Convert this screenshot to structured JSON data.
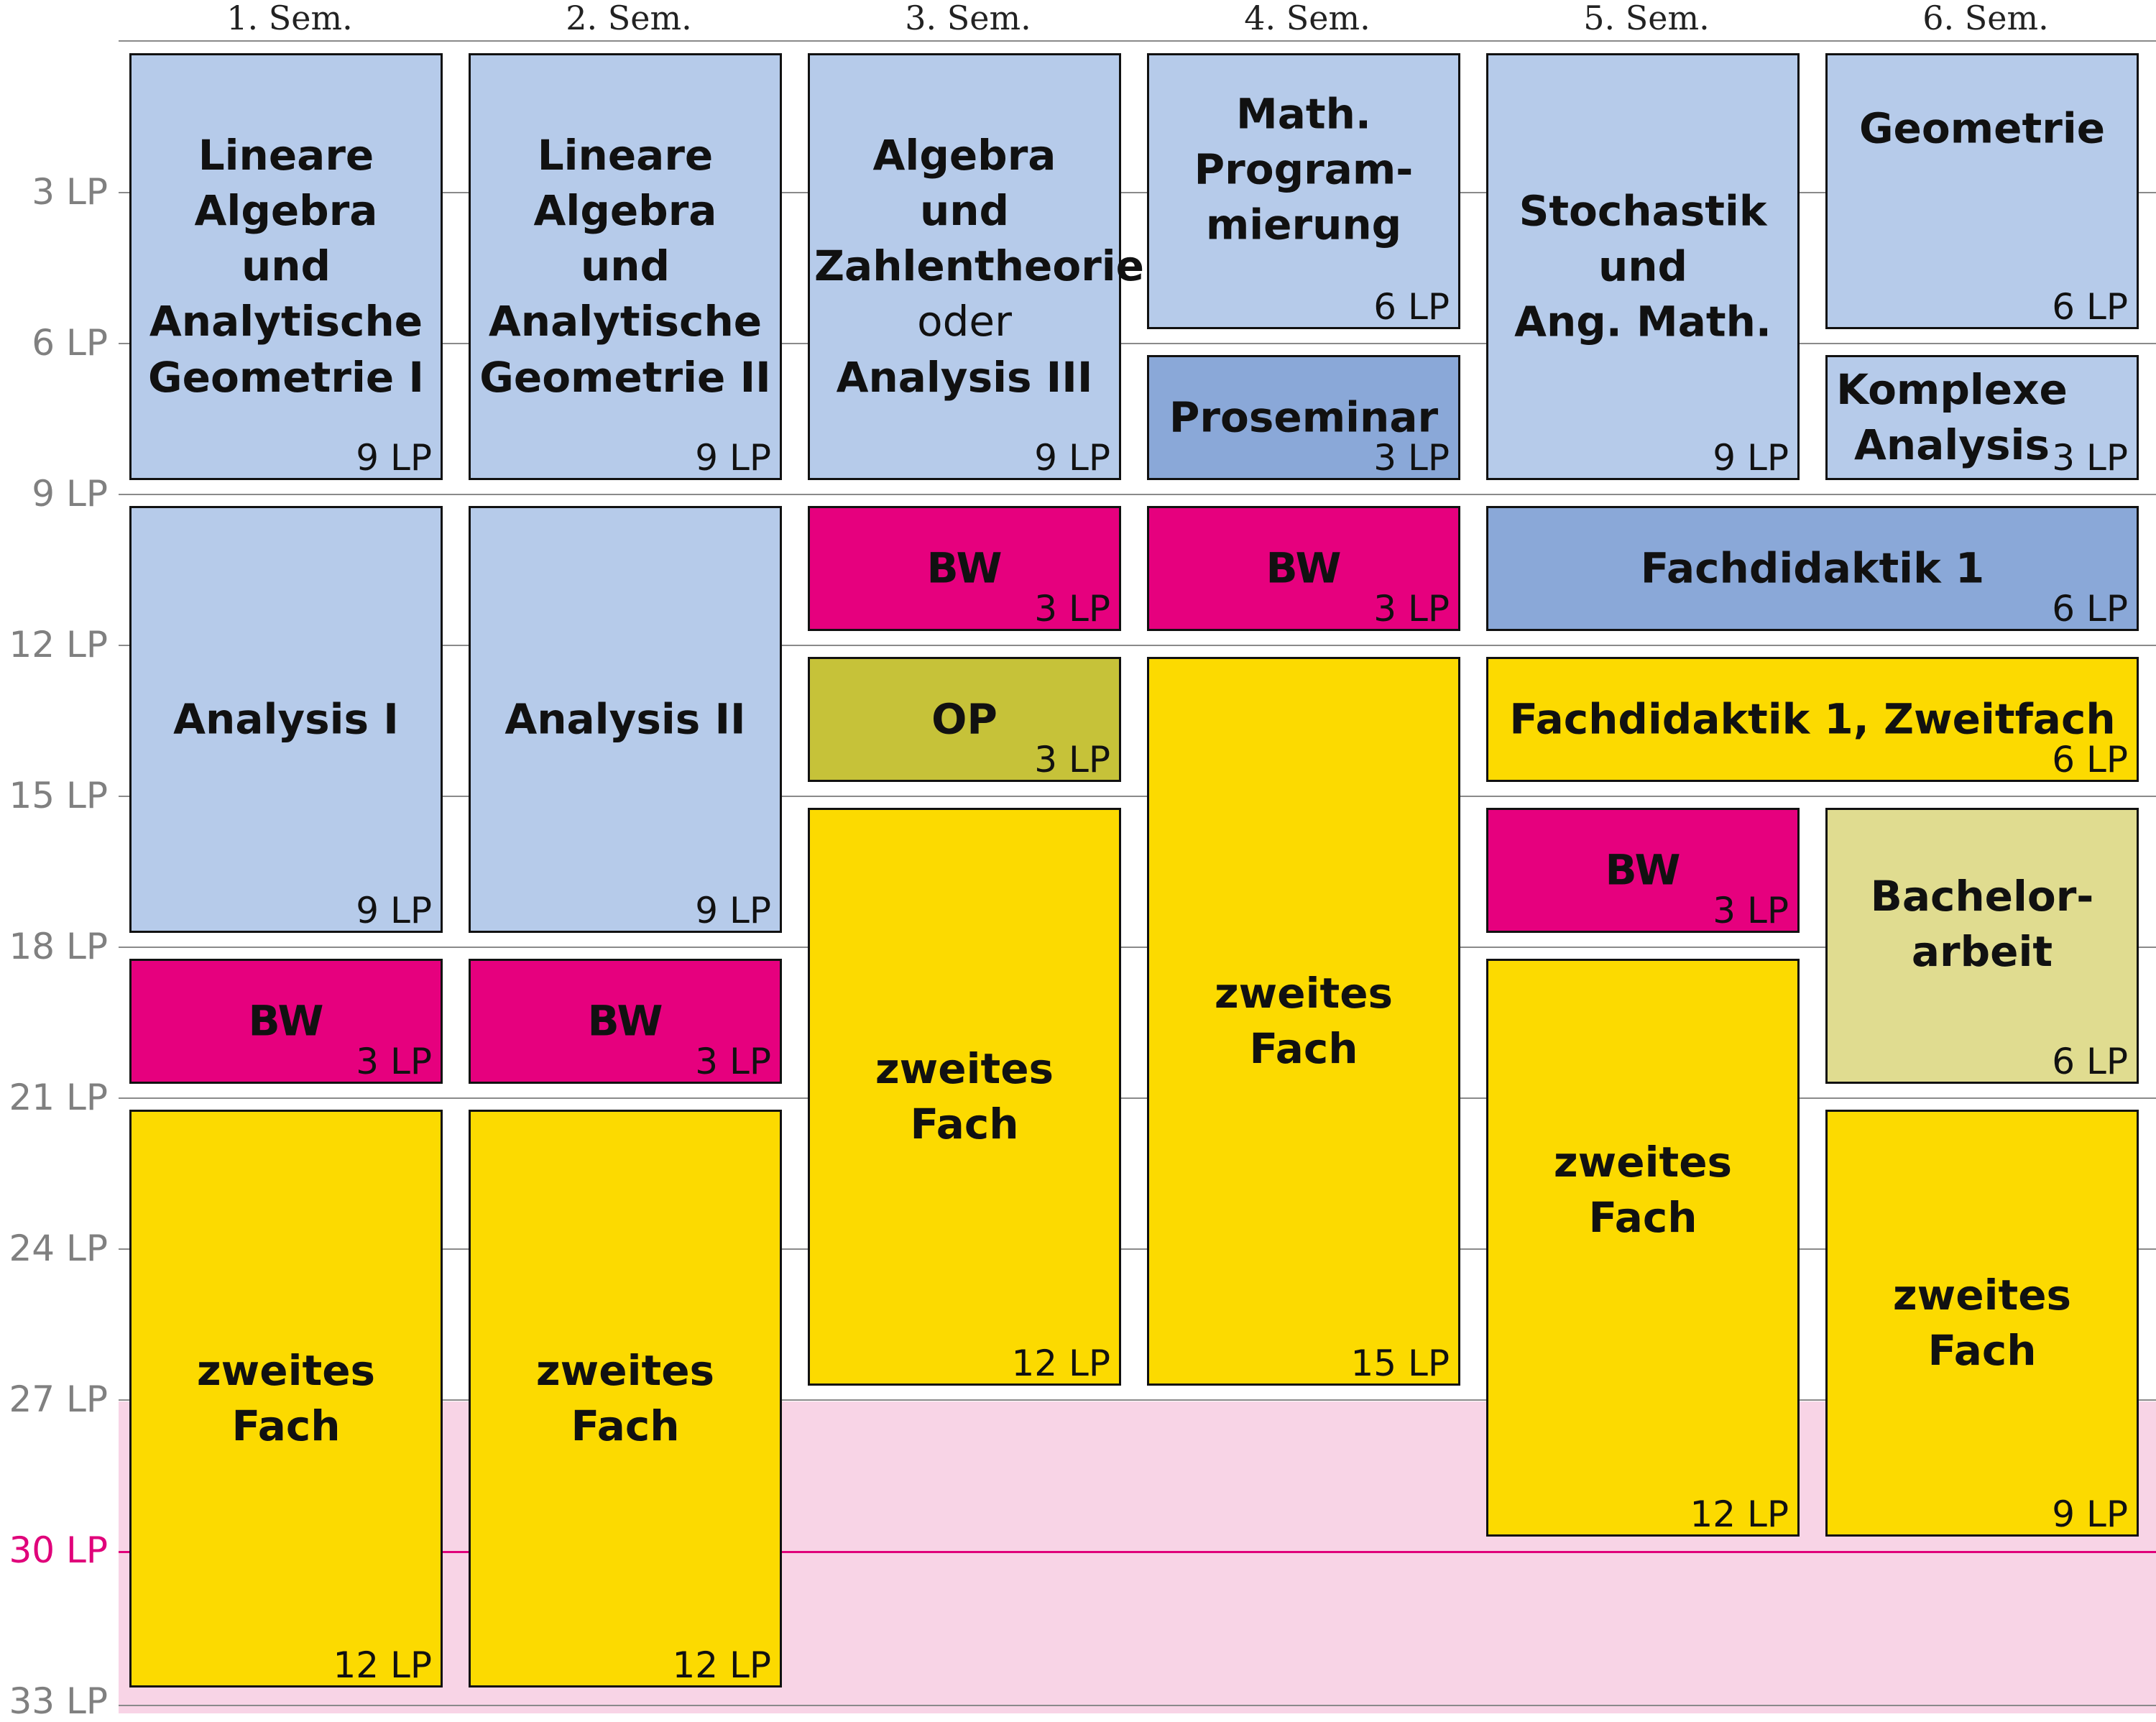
{
  "semesters": [
    "1. Sem.",
    "2. Sem.",
    "3. Sem.",
    "4. Sem.",
    "5. Sem.",
    "6. Sem."
  ],
  "y_axis": {
    "ticks": [
      "3 LP",
      "6 LP",
      "9 LP",
      "12 LP",
      "15 LP",
      "18 LP",
      "21 LP",
      "24 LP",
      "27 LP",
      "30 LP",
      "33 LP"
    ],
    "limit_label": "30 LP"
  },
  "colors": {
    "mathematics": "#b6cbea",
    "seminar_didactics": "#8aa8d8",
    "bw": "#e6007e",
    "op": "#c6c239",
    "second_subject": "#fcda00",
    "thesis": "#e0dc90",
    "overload_band": "#f8d4e6",
    "limit_line": "#e0007a"
  },
  "modules": [
    {
      "id": "la1",
      "name": "Lineare\nAlgebra\nund\nAnalytische\nGeometrie I",
      "lp": "9 LP",
      "cat": "math"
    },
    {
      "id": "la2",
      "name": "Lineare\nAlgebra\nund\nAnalytische\nGeometrie II",
      "lp": "9 LP",
      "cat": "math"
    },
    {
      "id": "alg",
      "name": "Algebra\nund\nZahlentheorie",
      "alt": "oder",
      "name2": "Analysis III",
      "lp": "9 LP",
      "cat": "math"
    },
    {
      "id": "mp",
      "name": "Math.\nProgram-\nmierung",
      "lp": "6 LP",
      "cat": "math"
    },
    {
      "id": "pro",
      "name": "Proseminar",
      "lp": "3 LP",
      "cat": "sem"
    },
    {
      "id": "sto",
      "name": "Stochastik\nund\nAng. Math.",
      "lp": "9 LP",
      "cat": "math"
    },
    {
      "id": "geo",
      "name": "Geometrie",
      "lp": "6 LP",
      "cat": "math"
    },
    {
      "id": "kan",
      "name": "Komplexe\nAnalysis",
      "lp": "3 LP",
      "cat": "math"
    },
    {
      "id": "an1",
      "name": "Analysis I",
      "lp": "9 LP",
      "cat": "math"
    },
    {
      "id": "an2",
      "name": "Analysis II",
      "lp": "9 LP",
      "cat": "math"
    },
    {
      "id": "bw3",
      "name": "BW",
      "lp": "3 LP",
      "cat": "bw"
    },
    {
      "id": "bw4",
      "name": "BW",
      "lp": "3 LP",
      "cat": "bw"
    },
    {
      "id": "fd1",
      "name": "Fachdidaktik 1",
      "lp": "6 LP",
      "cat": "sem"
    },
    {
      "id": "op",
      "name": "OP",
      "lp": "3 LP",
      "cat": "op"
    },
    {
      "id": "fd2",
      "name": "Fachdidaktik 1, Zweitfach",
      "lp": "6 LP",
      "cat": "second"
    },
    {
      "id": "zf4",
      "name": "zweites Fach",
      "lp": "15 LP",
      "cat": "second"
    },
    {
      "id": "zf3",
      "name": "zweites Fach",
      "lp": "12 LP",
      "cat": "second"
    },
    {
      "id": "bw5",
      "name": "BW",
      "lp": "3 LP",
      "cat": "bw"
    },
    {
      "id": "ba",
      "name": "Bachelor-\narbeit",
      "lp": "6 LP",
      "cat": "thesis"
    },
    {
      "id": "bw1",
      "name": "BW",
      "lp": "3 LP",
      "cat": "bw"
    },
    {
      "id": "bw2",
      "name": "BW",
      "lp": "3 LP",
      "cat": "bw"
    },
    {
      "id": "zf5",
      "name": "zweites Fach",
      "lp": "12 LP",
      "cat": "second"
    },
    {
      "id": "zf6",
      "name": "zweites Fach",
      "lp": "9 LP",
      "cat": "second"
    },
    {
      "id": "zf1",
      "name": "zweites Fach",
      "lp": "12 LP",
      "cat": "second"
    },
    {
      "id": "zf2",
      "name": "zweites Fach",
      "lp": "12 LP",
      "cat": "second"
    }
  ]
}
